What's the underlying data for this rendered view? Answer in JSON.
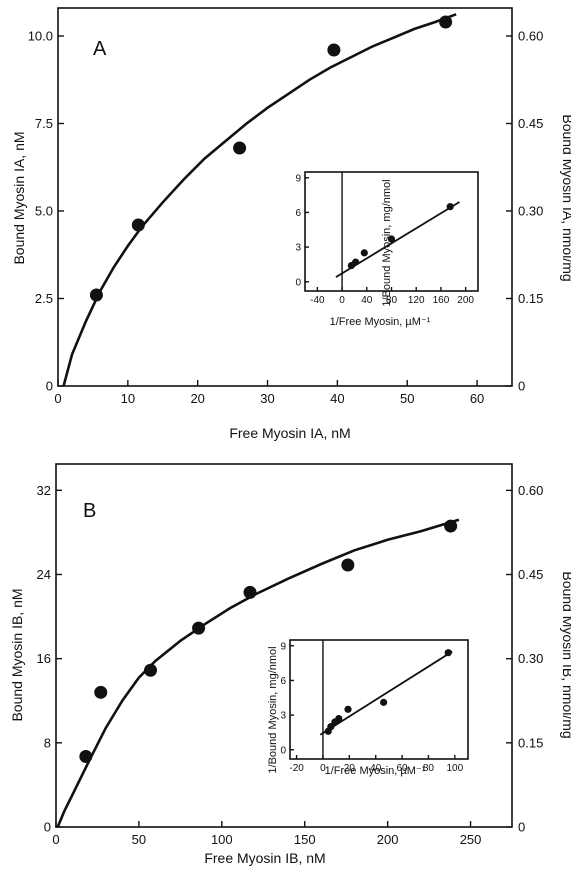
{
  "chart_data": [
    {
      "id": "A",
      "type": "scatter",
      "panel_label": "A",
      "xlabel": "Free Myosin IA, nM",
      "ylabel": "Bound Myosin IA, nM",
      "y2label": "Bound Myosin IA, nmol/mg",
      "xlim": [
        0,
        65
      ],
      "ylim": [
        0,
        10.8
      ],
      "y2lim": [
        0,
        0.648
      ],
      "xticks": [
        0,
        10,
        20,
        30,
        40,
        50,
        60
      ],
      "yticks": [
        0,
        2.5,
        5.0,
        7.5,
        10.0
      ],
      "yticklabels": [
        "0",
        "2.5",
        "5.0",
        "7.5",
        "10.0"
      ],
      "y2ticks": [
        0,
        0.15,
        0.3,
        0.45,
        0.6
      ],
      "y2ticklabels": [
        "0",
        "0.15",
        "0.30",
        "0.45",
        "0.60"
      ],
      "points": {
        "x": [
          5.5,
          11.5,
          26,
          39.5,
          55.5
        ],
        "y": [
          2.6,
          4.6,
          6.8,
          9.6,
          10.4
        ]
      },
      "curve": {
        "x": [
          0.8,
          2,
          4,
          6,
          8,
          10,
          12,
          15,
          18,
          21,
          24,
          27,
          30,
          33,
          36,
          39,
          42,
          45,
          48,
          51,
          54,
          57
        ],
        "y": [
          0,
          0.9,
          1.85,
          2.7,
          3.4,
          4.0,
          4.55,
          5.25,
          5.9,
          6.5,
          7.0,
          7.5,
          7.95,
          8.35,
          8.75,
          9.1,
          9.4,
          9.7,
          9.95,
          10.2,
          10.4,
          10.62
        ]
      },
      "grid": false,
      "inset": {
        "type": "scatter",
        "xlabel": "1/Free Myosin, µM⁻¹",
        "ylabel": "1/Bound Myosin, mg/nmol",
        "xlim": [
          -60,
          220
        ],
        "ylim": [
          -0.8,
          9.5
        ],
        "xticks": [
          -40,
          0,
          40,
          80,
          120,
          160,
          200
        ],
        "xticklabels": [
          "-40",
          "0",
          "40",
          "80",
          "120",
          "160",
          "200"
        ],
        "yticks": [
          0,
          3,
          6,
          9
        ],
        "yticklabels": [
          "0",
          "3",
          "6",
          "9"
        ],
        "points": {
          "x": [
            15,
            22,
            36,
            80,
            175
          ],
          "y": [
            1.4,
            1.7,
            2.5,
            3.7,
            6.5
          ]
        },
        "line": {
          "x": [
            -10,
            190
          ],
          "y": [
            0.4,
            6.9
          ]
        }
      }
    },
    {
      "id": "B",
      "type": "scatter",
      "panel_label": "B",
      "xlabel": "Free Myosin IB, nM",
      "ylabel": "Bound Myosin IB, nM",
      "y2label": "Bound Myosin IB, nmol/mg",
      "xlim": [
        0,
        275
      ],
      "ylim": [
        0,
        34.5
      ],
      "y2lim": [
        0,
        0.647
      ],
      "xticks": [
        0,
        50,
        100,
        150,
        200,
        250
      ],
      "yticks": [
        0,
        8,
        16,
        24,
        32
      ],
      "yticklabels": [
        "0",
        "8",
        "16",
        "24",
        "32"
      ],
      "y2ticks": [
        0,
        0.15,
        0.3,
        0.45,
        0.6
      ],
      "y2ticklabels": [
        "0",
        "0.15",
        "0.30",
        "0.45",
        "0.60"
      ],
      "points": {
        "x": [
          18,
          27,
          57,
          86,
          117,
          176,
          238
        ],
        "y": [
          6.7,
          12.8,
          14.9,
          18.9,
          22.3,
          24.9,
          28.6
        ]
      },
      "curve": {
        "x": [
          1,
          5,
          10,
          20,
          30,
          40,
          50,
          60,
          75,
          90,
          105,
          120,
          140,
          160,
          180,
          200,
          220,
          243
        ],
        "y": [
          0,
          1.5,
          3.1,
          6.3,
          9.4,
          12.0,
          14.2,
          15.8,
          17.7,
          19.3,
          20.8,
          22.1,
          23.6,
          25.0,
          26.3,
          27.3,
          28.1,
          29.2
        ]
      },
      "grid": false,
      "inset": {
        "type": "scatter",
        "xlabel": "1/Free Myosin, µM⁻¹",
        "ylabel": "1/Bound Myosin, mg/nmol",
        "xlim": [
          -25,
          110
        ],
        "ylim": [
          -0.8,
          9.5
        ],
        "xticks": [
          -20,
          0,
          20,
          40,
          60,
          80,
          100
        ],
        "xticklabels": [
          "-20",
          "0",
          "20",
          "40",
          "60",
          "80",
          "100"
        ],
        "yticks": [
          0,
          3,
          6,
          9
        ],
        "yticklabels": [
          "0",
          "3",
          "6",
          "9"
        ],
        "points": {
          "x": [
            4,
            6,
            9,
            12,
            19,
            46,
            95
          ],
          "y": [
            1.6,
            2.0,
            2.4,
            2.7,
            3.5,
            4.1,
            8.4
          ]
        },
        "line": {
          "x": [
            -2,
            98
          ],
          "y": [
            1.3,
            8.5
          ]
        }
      }
    }
  ]
}
